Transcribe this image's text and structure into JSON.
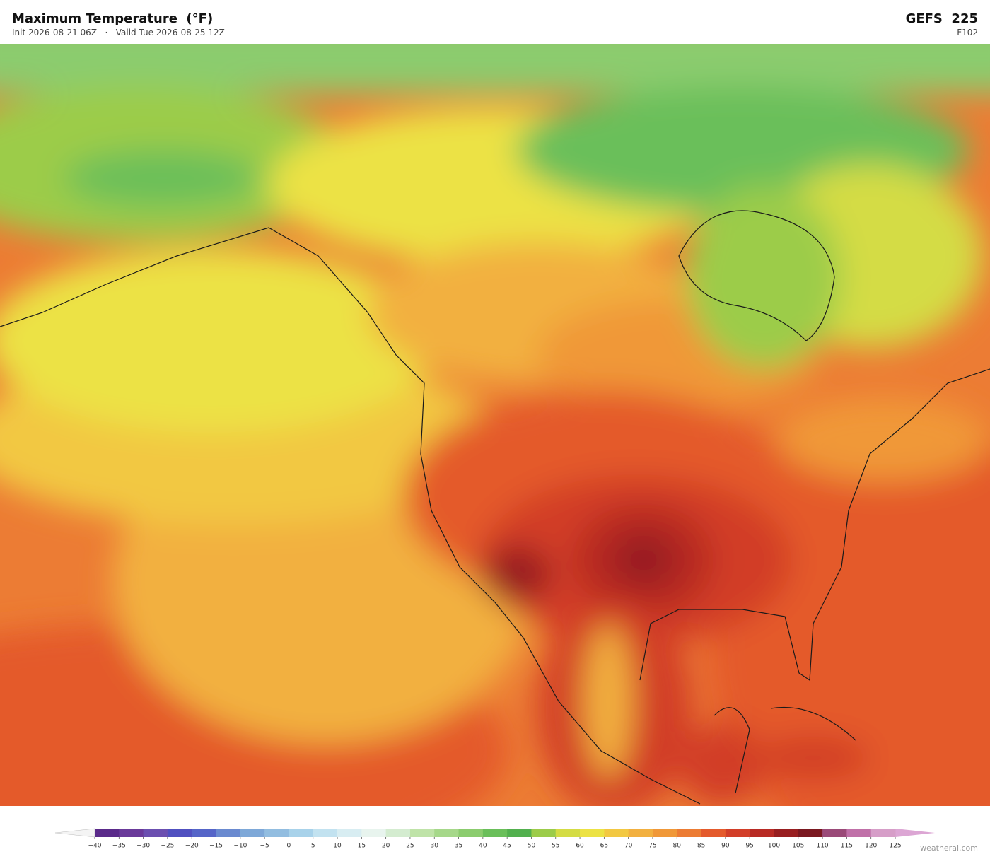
{
  "header": {
    "title": "Maximum Temperature  (°F)",
    "subtitle": "Init 2026-08-21 06Z   ·   Valid Tue 2026-08-25 12Z",
    "model": "GEFS  225",
    "forecast_hour": "F102"
  },
  "colorbar": {
    "ticks": [
      {
        "value": -40,
        "label": "−40"
      },
      {
        "value": -35,
        "label": "−35"
      },
      {
        "value": -30,
        "label": "−30"
      },
      {
        "value": -25,
        "label": "−25"
      },
      {
        "value": -20,
        "label": "−20"
      },
      {
        "value": -15,
        "label": "−15"
      },
      {
        "value": -10,
        "label": "−10"
      },
      {
        "value": -5,
        "label": "−5"
      },
      0,
      5,
      10,
      15,
      20,
      25,
      30,
      35,
      40,
      45,
      50,
      55,
      60,
      65,
      70,
      75,
      80,
      85,
      90,
      95,
      100,
      105,
      110,
      115,
      120,
      125
    ],
    "colors": [
      "#5a2a8a",
      "#6a3a9a",
      "#6b4fb0",
      "#5050c0",
      "#5565c8",
      "#6a8ad0",
      "#7ea8d8",
      "#92bde0",
      "#a8d2ea",
      "#c2e2f0",
      "#d8edf2",
      "#e8f4ee",
      "#d4ecd0",
      "#bfe3a8",
      "#a6d88a",
      "#8bcc6e",
      "#6abf5a",
      "#52b04e",
      "#9ccc4a",
      "#d4dc44",
      "#ece244",
      "#f2c842",
      "#f2b040",
      "#f09838",
      "#ec7c34",
      "#e45a2c",
      "#d23e28",
      "#b82a24",
      "#981e20",
      "#7a1820",
      "#9a4a78",
      "#c070a8",
      "#d69ec8"
    ],
    "under_color": "#f4f4f4",
    "over_color": "#dca6d4"
  },
  "watermark": "weatherai.com"
}
